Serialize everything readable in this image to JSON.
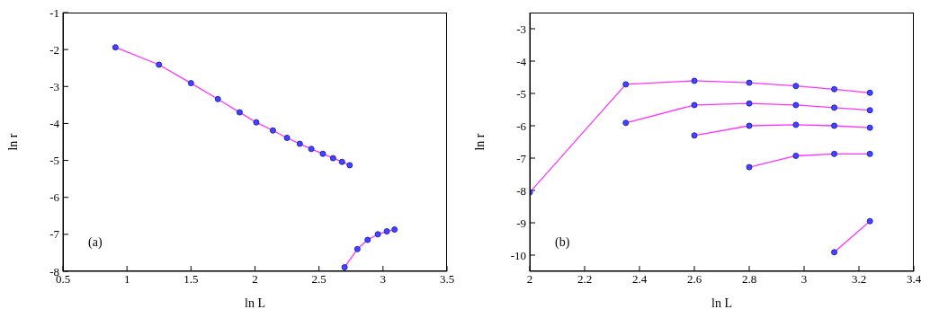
{
  "chart_data": [
    {
      "type": "line",
      "xlabel": "ln  L",
      "ylabel": "ln  r",
      "annotations": [
        "(a)"
      ],
      "xlim": [
        0.5,
        3.5
      ],
      "xticks": [
        0.5,
        1,
        1.5,
        2,
        2.5,
        3,
        3.5
      ],
      "ylim": [
        -8,
        -1
      ],
      "yticks": [
        -8,
        -7,
        -6,
        -5,
        -4,
        -3,
        -2,
        -1
      ],
      "marker": "circle",
      "line_style": "solid",
      "series": [
        {
          "color": "#ff33ff",
          "x": [
            0.91,
            1.25,
            1.5,
            1.71,
            1.88,
            2.01,
            2.14,
            2.25,
            2.35,
            2.44,
            2.53,
            2.61,
            2.68,
            2.74
          ],
          "values": [
            -1.94,
            -2.41,
            -2.91,
            -3.34,
            -3.7,
            -3.97,
            -4.19,
            -4.39,
            -4.55,
            -4.69,
            -4.82,
            -4.94,
            -5.04,
            -5.13
          ]
        },
        {
          "color": "#ff33ff",
          "x": [
            2.7,
            2.8,
            2.88,
            2.96,
            3.03,
            3.09
          ],
          "values": [
            -7.89,
            -7.4,
            -7.15,
            -7.0,
            -6.92,
            -6.87
          ]
        }
      ]
    },
    {
      "type": "line",
      "xlabel": "ln  L",
      "ylabel": "ln  r",
      "annotations": [
        "(b)"
      ],
      "xlim": [
        2,
        3.4
      ],
      "xticks": [
        2,
        2.2,
        2.4,
        2.6,
        2.8,
        3,
        3.2,
        3.4
      ],
      "ylim": [
        -10.5,
        -2.5
      ],
      "yticks": [
        -10,
        -9,
        -8,
        -7,
        -6,
        -5,
        -4,
        -3
      ],
      "marker": "circle",
      "line_style": "solid",
      "series": [
        {
          "color": "#ff33ff",
          "x": [
            2,
            2.35,
            2.6,
            2.8,
            2.97,
            3.11,
            3.24
          ],
          "values": [
            -8.06,
            -4.72,
            -4.61,
            -4.67,
            -4.77,
            -4.87,
            -4.98
          ]
        },
        {
          "color": "#ff33ff",
          "x": [
            2.35,
            2.6,
            2.8,
            2.97,
            3.11,
            3.24
          ],
          "values": [
            -5.91,
            -5.36,
            -5.31,
            -5.36,
            -5.44,
            -5.52
          ]
        },
        {
          "color": "#ff33ff",
          "x": [
            2.6,
            2.8,
            2.97,
            3.11,
            3.24
          ],
          "values": [
            -6.3,
            -6.0,
            -5.97,
            -6.0,
            -6.06
          ]
        },
        {
          "color": "#ff33ff",
          "x": [
            2.8,
            2.97,
            3.11,
            3.24
          ],
          "values": [
            -7.28,
            -6.93,
            -6.87,
            -6.87
          ]
        },
        {
          "color": "#ff33ff",
          "x": [
            3.11,
            3.24
          ],
          "values": [
            -9.91,
            -8.95
          ]
        }
      ]
    }
  ]
}
